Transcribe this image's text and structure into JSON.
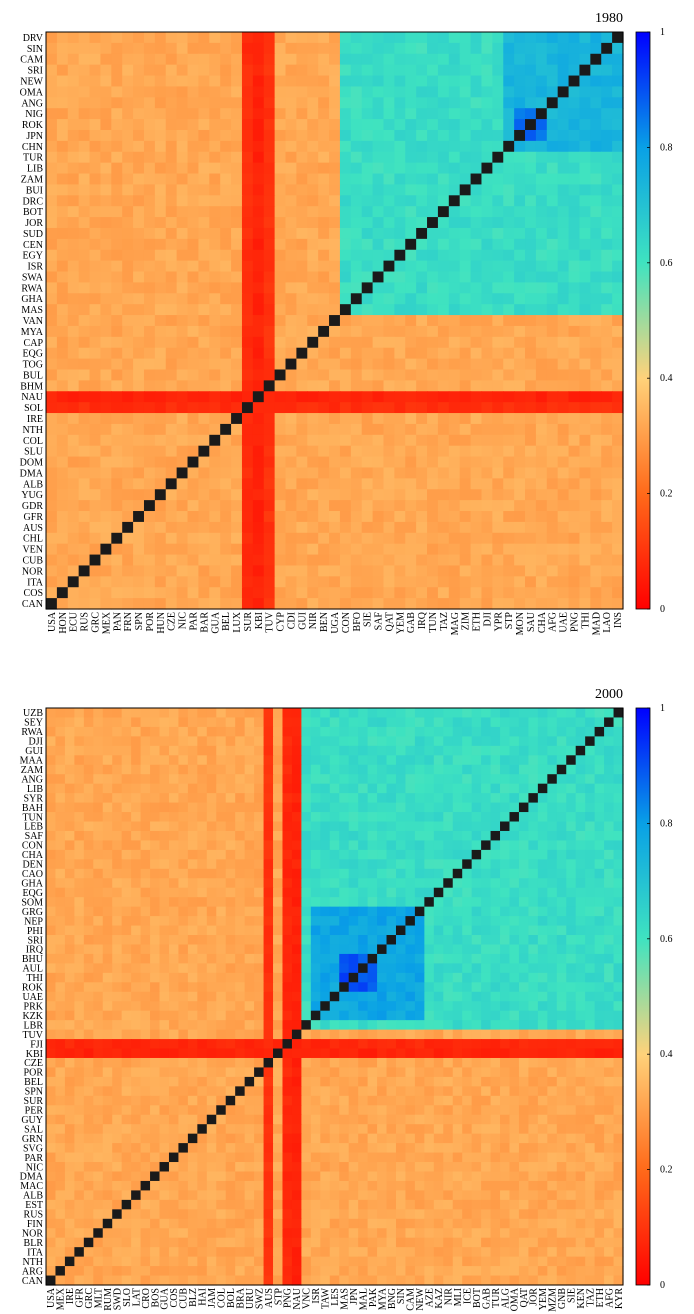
{
  "chart_data": [
    {
      "type": "heatmap",
      "title": "1980",
      "zlim": [
        0,
        1
      ],
      "colorbar_ticks": [
        "0",
        "0.2",
        "0.4",
        "0.6",
        "0.8",
        "1"
      ],
      "colormap": [
        "#ff0000",
        "#ff6a1a",
        "#ffd27a",
        "#3fe3c0",
        "#09a0e6",
        "#0000ff"
      ],
      "y_labels": [
        "DRV",
        "SIN",
        "CAM",
        "SRI",
        "NEW",
        "OMA",
        "ANG",
        "NIG",
        "ROK",
        "JPN",
        "CHN",
        "TUR",
        "LIB",
        "ZAM",
        "BUI",
        "DRC",
        "BOT",
        "JOR",
        "SUD",
        "CEN",
        "EGY",
        "ISR",
        "SWA",
        "RWA",
        "GHA",
        "MAS",
        "VAN",
        "MYA",
        "CAP",
        "EQG",
        "TOG",
        "BUL",
        "BHM",
        "NAU",
        "SOL",
        "IRE",
        "NTH",
        "COL",
        "SLU",
        "DOM",
        "DMA",
        "ALB",
        "YUG",
        "GDR",
        "GFR",
        "AUS",
        "CHL",
        "VEN",
        "CUB",
        "NOR",
        "ITA",
        "COS",
        "CAN"
      ],
      "x_labels": [
        "USA",
        "HON",
        "ECU",
        "RUS",
        "GRC",
        "MEX",
        "PAN",
        "FRN",
        "SPN",
        "POR",
        "HUN",
        "CZE",
        "NIC",
        "PAR",
        "BAR",
        "GUA",
        "BEL",
        "LUX",
        "SUR",
        "KBI",
        "TUV",
        "CYP",
        "CDI",
        "GUI",
        "NIR",
        "BEN",
        "UGA",
        "CON",
        "BFO",
        "SIE",
        "SAF",
        "QAT",
        "YEM",
        "GAB",
        "IRQ",
        "TUN",
        "TAZ",
        "MAG",
        "ZIM",
        "ETH",
        "DJI",
        "YPR",
        "STP",
        "MON",
        "SAU",
        "CHA",
        "AFG",
        "UAE",
        "PNG",
        "THI",
        "MAD",
        "LAO",
        "INS"
      ],
      "blocks": [
        {
          "from": 27,
          "to": 52,
          "value": 0.62
        },
        {
          "from": 42,
          "to": 52,
          "value": 0.74
        },
        {
          "from": 43,
          "to": 45,
          "value": 0.86
        }
      ],
      "low_countries": [
        {
          "label": "NAU",
          "value": 0.05
        },
        {
          "label": "SOL",
          "value": 0.07
        },
        {
          "label": "SUR",
          "value": 0.07
        },
        {
          "label": "KBI",
          "value": 0.05
        },
        {
          "label": "TUV",
          "value": 0.08
        }
      ]
    },
    {
      "type": "heatmap",
      "title": "2000",
      "zlim": [
        0,
        1
      ],
      "colorbar_ticks": [
        "0",
        "0.2",
        "0.4",
        "0.6",
        "0.8",
        "1"
      ],
      "colormap": [
        "#ff0000",
        "#ff6a1a",
        "#ffd27a",
        "#3fe3c0",
        "#09a0e6",
        "#0000ff"
      ],
      "y_labels": [
        "UZB",
        "SEY",
        "RWA",
        "DJI",
        "GUI",
        "MAA",
        "ZAM",
        "ANG",
        "LIB",
        "SYR",
        "BAH",
        "TUN",
        "LEB",
        "SAF",
        "CON",
        "CHA",
        "DEN",
        "CAO",
        "GHA",
        "EQG",
        "SOM",
        "GRG",
        "NEP",
        "PHI",
        "SRI",
        "IRQ",
        "BHU",
        "AUL",
        "THI",
        "ROK",
        "UAE",
        "PRK",
        "KZK",
        "LBR",
        "TUV",
        "FJI",
        "KBI",
        "CZE",
        "POR",
        "BEL",
        "SPN",
        "SUR",
        "PER",
        "GUY",
        "SAL",
        "GRN",
        "SVG",
        "PAR",
        "NIC",
        "DMA",
        "MAC",
        "ALB",
        "EST",
        "RUS",
        "FIN",
        "NOR",
        "BLR",
        "ITA",
        "NTH",
        "ARG",
        "CAN"
      ],
      "x_labels": [
        "USA",
        "MEX",
        "IRE",
        "GFR",
        "GRC",
        "MLT",
        "RUM",
        "SWD",
        "SLO",
        "LAT",
        "CRO",
        "BOS",
        "GUA",
        "COS",
        "CUB",
        "BLZ",
        "HAI",
        "JAM",
        "COL",
        "BOL",
        "BRA",
        "URU",
        "SWZ",
        "AUS",
        "STP",
        "PNG",
        "NAU",
        "VNC",
        "ISR",
        "TAW",
        "LES",
        "MAS",
        "JPN",
        "MAL",
        "PAK",
        "MYA",
        "BNG",
        "SIN",
        "CAM",
        "NEW",
        "AZE",
        "KAZ",
        "NIR",
        "MLI",
        "ICE",
        "BOT",
        "GAB",
        "TUR",
        "ALG",
        "OMA",
        "QAT",
        "JOR",
        "YEM",
        "MZM",
        "GNB",
        "SIE",
        "KEN",
        "TAZ",
        "ETH",
        "AFG",
        "KYR"
      ],
      "blocks": [
        {
          "from": 27,
          "to": 60,
          "value": 0.62
        },
        {
          "from": 28,
          "to": 39,
          "value": 0.78
        },
        {
          "from": 31,
          "to": 34,
          "value": 0.9
        }
      ],
      "low_countries": [
        {
          "label": "AUS",
          "value": 0.08
        },
        {
          "label": "PNG",
          "value": 0.06
        },
        {
          "label": "NAU",
          "value": 0.05
        },
        {
          "label": "FJI",
          "value": 0.06
        },
        {
          "label": "KBI",
          "value": 0.05
        }
      ]
    }
  ]
}
